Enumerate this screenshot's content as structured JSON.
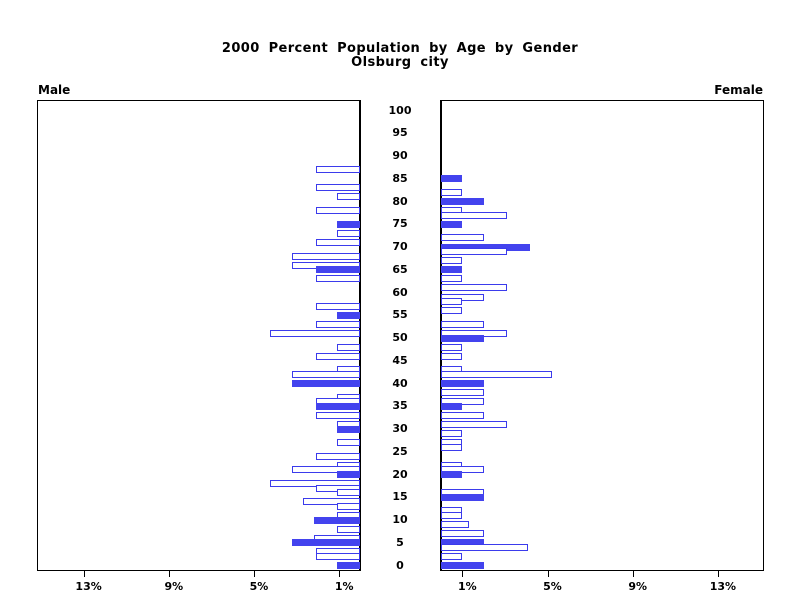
{
  "page": {
    "background": "#ffffff"
  },
  "chart_data": {
    "type": "bar",
    "variant": "population-pyramid",
    "title": "2000 Percent Population by Age by Gender",
    "subtitle": "Olsburg city",
    "left_header": "Male",
    "right_header": "Female",
    "age_axis": {
      "min": 0,
      "max": 100,
      "tick_step": 5,
      "tick_labels": [
        "100",
        "95",
        "90",
        "85",
        "80",
        "75",
        "70",
        "65",
        "60",
        "55",
        "50",
        "45",
        "40",
        "35",
        "30",
        "25",
        "20",
        "15",
        "10",
        "5",
        "0"
      ]
    },
    "pct_axis": {
      "tick_values": [
        1,
        5,
        9,
        13
      ],
      "tick_labels": [
        "1%",
        "5%",
        "9%",
        "13%"
      ],
      "left_axis_label_order": [
        "13%",
        "9%",
        "5%",
        "1%"
      ],
      "right_axis_label_order": [
        "1%",
        "5%",
        "9%",
        "13%"
      ]
    },
    "colors": {
      "bar_fill": "#4343ee",
      "bar_outline": "#3b3bec",
      "axis": "#000000",
      "text": "#000000"
    },
    "series": [
      {
        "name": "Male",
        "side": "left",
        "points": [
          {
            "age": 87,
            "pct": 2.1,
            "filled": false
          },
          {
            "age": 83,
            "pct": 2.1,
            "filled": false
          },
          {
            "age": 81,
            "pct": 1.1,
            "filled": false
          },
          {
            "age": 78,
            "pct": 2.1,
            "filled": false
          },
          {
            "age": 75,
            "pct": 1.1,
            "filled": true
          },
          {
            "age": 73,
            "pct": 1.1,
            "filled": false
          },
          {
            "age": 71,
            "pct": 2.1,
            "filled": false
          },
          {
            "age": 68,
            "pct": 3.2,
            "filled": false
          },
          {
            "age": 66,
            "pct": 3.2,
            "filled": false
          },
          {
            "age": 65,
            "pct": 2.1,
            "filled": true
          },
          {
            "age": 63,
            "pct": 2.1,
            "filled": false
          },
          {
            "age": 57,
            "pct": 2.1,
            "filled": false
          },
          {
            "age": 55,
            "pct": 1.1,
            "filled": true
          },
          {
            "age": 53,
            "pct": 2.1,
            "filled": false
          },
          {
            "age": 51,
            "pct": 4.25,
            "filled": false
          },
          {
            "age": 48,
            "pct": 1.1,
            "filled": false
          },
          {
            "age": 46,
            "pct": 2.1,
            "filled": false
          },
          {
            "age": 43,
            "pct": 1.1,
            "filled": false
          },
          {
            "age": 42,
            "pct": 3.2,
            "filled": false
          },
          {
            "age": 40,
            "pct": 3.2,
            "filled": true
          },
          {
            "age": 37,
            "pct": 1.1,
            "filled": false
          },
          {
            "age": 36,
            "pct": 2.1,
            "filled": false
          },
          {
            "age": 35,
            "pct": 2.1,
            "filled": true
          },
          {
            "age": 33,
            "pct": 2.1,
            "filled": false
          },
          {
            "age": 31,
            "pct": 1.1,
            "filled": false
          },
          {
            "age": 30,
            "pct": 1.1,
            "filled": true
          },
          {
            "age": 27,
            "pct": 1.1,
            "filled": false
          },
          {
            "age": 24,
            "pct": 2.1,
            "filled": false
          },
          {
            "age": 22,
            "pct": 1.1,
            "filled": false
          },
          {
            "age": 21,
            "pct": 3.2,
            "filled": false
          },
          {
            "age": 20,
            "pct": 1.1,
            "filled": true
          },
          {
            "age": 18,
            "pct": 4.25,
            "filled": false
          },
          {
            "age": 17,
            "pct": 2.1,
            "filled": false
          },
          {
            "age": 16,
            "pct": 1.1,
            "filled": false
          },
          {
            "age": 14,
            "pct": 2.7,
            "filled": false
          },
          {
            "age": 13,
            "pct": 1.1,
            "filled": false
          },
          {
            "age": 11,
            "pct": 1.1,
            "filled": false
          },
          {
            "age": 10,
            "pct": 2.2,
            "filled": true
          },
          {
            "age": 8,
            "pct": 1.1,
            "filled": false
          },
          {
            "age": 6,
            "pct": 2.2,
            "filled": false
          },
          {
            "age": 5,
            "pct": 3.2,
            "filled": true
          },
          {
            "age": 3,
            "pct": 2.1,
            "filled": false
          },
          {
            "age": 2,
            "pct": 2.1,
            "filled": false
          },
          {
            "age": 0,
            "pct": 1.1,
            "filled": true
          }
        ]
      },
      {
        "name": "Female",
        "side": "right",
        "points": [
          {
            "age": 85,
            "pct": 1.0,
            "filled": true
          },
          {
            "age": 82,
            "pct": 1.0,
            "filled": false
          },
          {
            "age": 80,
            "pct": 2.0,
            "filled": true
          },
          {
            "age": 78,
            "pct": 1.0,
            "filled": false
          },
          {
            "age": 77,
            "pct": 3.1,
            "filled": false
          },
          {
            "age": 75,
            "pct": 1.0,
            "filled": true
          },
          {
            "age": 72,
            "pct": 2.0,
            "filled": false
          },
          {
            "age": 70,
            "pct": 4.2,
            "filled": true
          },
          {
            "age": 69,
            "pct": 3.1,
            "filled": false
          },
          {
            "age": 67,
            "pct": 1.0,
            "filled": false
          },
          {
            "age": 65,
            "pct": 1.0,
            "filled": true
          },
          {
            "age": 63,
            "pct": 1.0,
            "filled": false
          },
          {
            "age": 61,
            "pct": 3.1,
            "filled": false
          },
          {
            "age": 59,
            "pct": 2.0,
            "filled": false
          },
          {
            "age": 58,
            "pct": 1.0,
            "filled": false
          },
          {
            "age": 56,
            "pct": 1.0,
            "filled": false
          },
          {
            "age": 53,
            "pct": 2.0,
            "filled": false
          },
          {
            "age": 51,
            "pct": 3.1,
            "filled": false
          },
          {
            "age": 50,
            "pct": 2.0,
            "filled": true
          },
          {
            "age": 48,
            "pct": 1.0,
            "filled": false
          },
          {
            "age": 46,
            "pct": 1.0,
            "filled": false
          },
          {
            "age": 43,
            "pct": 1.0,
            "filled": false
          },
          {
            "age": 42,
            "pct": 5.2,
            "filled": false
          },
          {
            "age": 40,
            "pct": 2.0,
            "filled": true
          },
          {
            "age": 38,
            "pct": 2.0,
            "filled": false
          },
          {
            "age": 36,
            "pct": 2.0,
            "filled": false
          },
          {
            "age": 35,
            "pct": 1.0,
            "filled": true
          },
          {
            "age": 33,
            "pct": 2.0,
            "filled": false
          },
          {
            "age": 31,
            "pct": 3.1,
            "filled": false
          },
          {
            "age": 29,
            "pct": 1.0,
            "filled": false
          },
          {
            "age": 27,
            "pct": 1.0,
            "filled": false
          },
          {
            "age": 26,
            "pct": 1.0,
            "filled": false
          },
          {
            "age": 22,
            "pct": 1.0,
            "filled": false
          },
          {
            "age": 21,
            "pct": 2.0,
            "filled": false
          },
          {
            "age": 20,
            "pct": 1.0,
            "filled": true
          },
          {
            "age": 16,
            "pct": 2.0,
            "filled": false
          },
          {
            "age": 15,
            "pct": 2.0,
            "filled": true
          },
          {
            "age": 12,
            "pct": 1.0,
            "filled": false
          },
          {
            "age": 11,
            "pct": 1.0,
            "filled": false
          },
          {
            "age": 9,
            "pct": 1.3,
            "filled": false
          },
          {
            "age": 7,
            "pct": 2.0,
            "filled": false
          },
          {
            "age": 5,
            "pct": 2.0,
            "filled": true
          },
          {
            "age": 4,
            "pct": 4.1,
            "filled": false
          },
          {
            "age": 2,
            "pct": 1.0,
            "filled": false
          },
          {
            "age": 0,
            "pct": 2.0,
            "filled": true
          }
        ]
      }
    ]
  }
}
